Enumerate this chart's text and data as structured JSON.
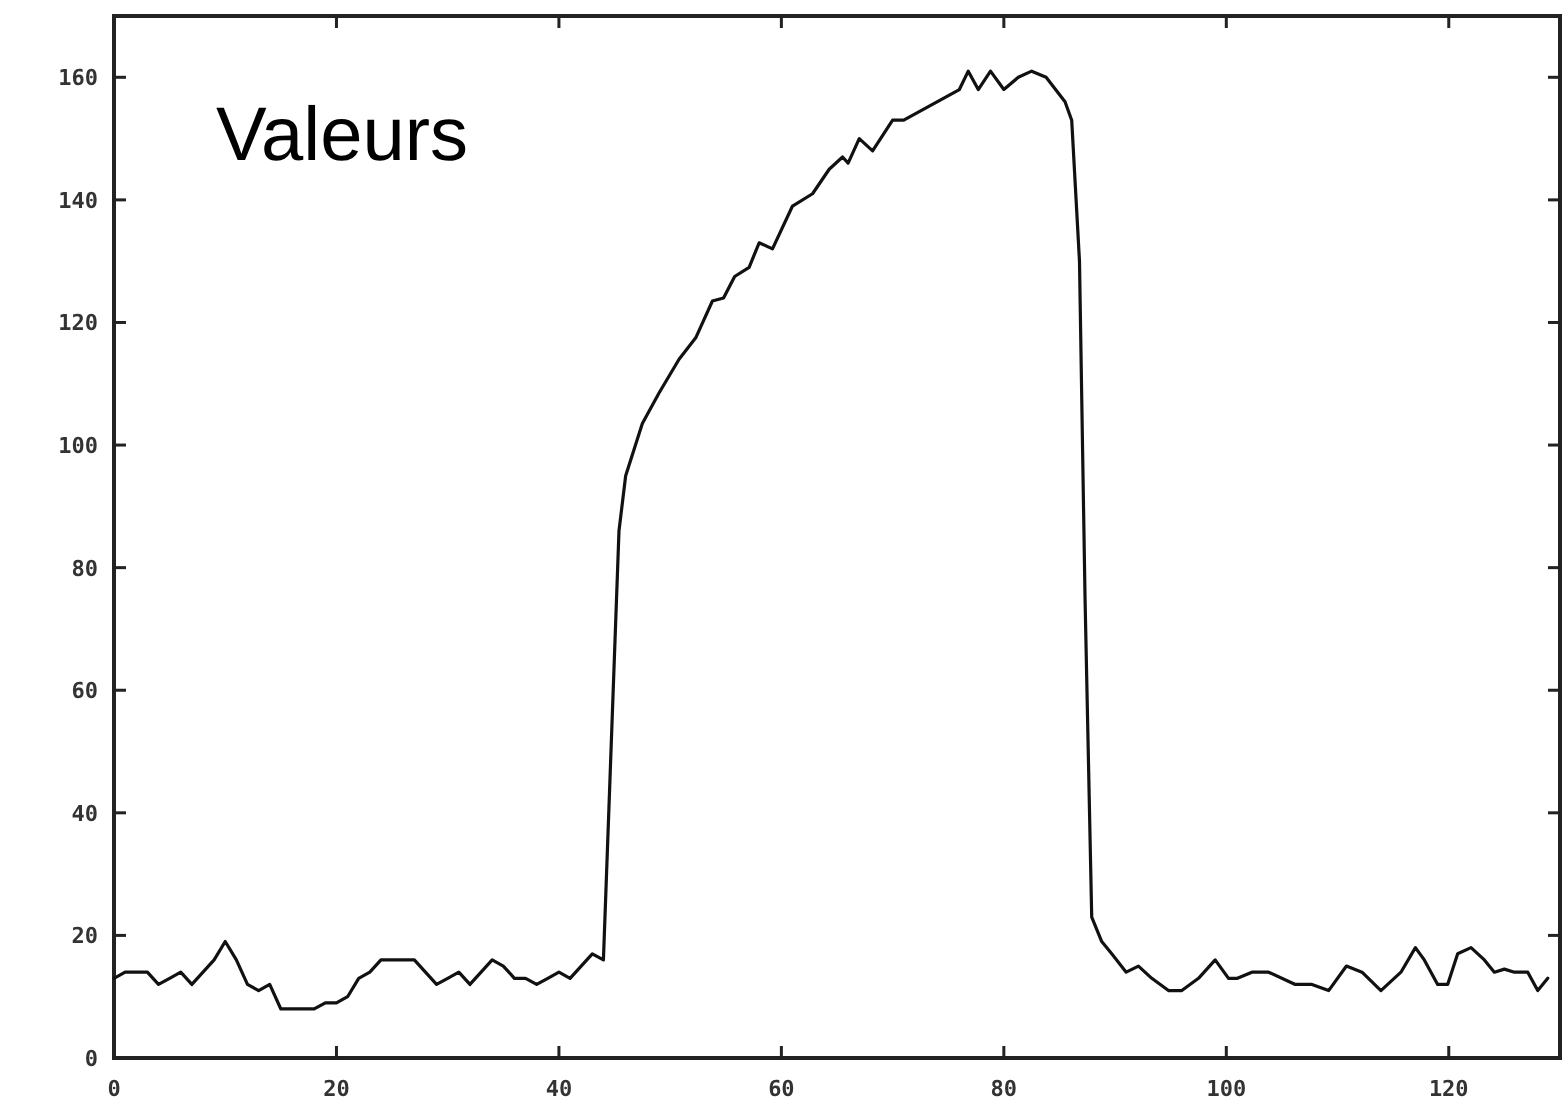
{
  "chart_data": {
    "type": "line",
    "title": "Valeurs",
    "x": [
      0,
      1,
      2,
      3,
      4,
      5,
      6,
      7,
      8,
      9,
      10,
      11,
      12,
      13,
      14,
      15,
      16,
      17,
      18,
      19,
      20,
      21,
      22,
      23,
      24,
      25,
      26,
      27,
      28,
      29,
      30,
      31,
      32,
      33,
      34,
      35,
      36,
      37,
      38,
      39,
      40,
      41,
      42,
      43,
      44,
      45.4,
      46,
      47.5,
      49,
      50.8,
      52.3,
      53.8,
      54.8,
      55.8,
      57.1,
      58,
      59.2,
      61,
      62.8,
      64.3,
      65.5,
      66,
      67,
      68.2,
      70,
      71,
      73.5,
      76,
      76.8,
      77.7,
      78.8,
      80,
      81.3,
      82.5,
      83.8,
      85.5,
      86.1,
      86.8,
      87.3,
      87.9,
      88.8,
      89.7,
      91,
      92.1,
      93.3,
      94.8,
      96,
      97.5,
      99,
      100.2,
      101,
      102.3,
      103.8,
      106.2,
      107.7,
      109.2,
      110.8,
      112.2,
      113.9,
      115.7,
      117,
      117.8,
      119,
      119.9,
      120.8,
      122,
      123.2,
      124.1,
      125,
      125.9,
      127.1,
      128,
      128.9
    ],
    "series": [
      {
        "color": "#111111",
        "values": [
          13,
          14,
          14,
          14,
          12,
          13,
          14,
          12,
          14,
          16,
          19,
          16,
          12,
          11,
          12,
          8,
          8,
          8,
          8,
          9,
          9,
          10,
          13,
          14,
          16,
          16,
          16,
          16,
          14,
          12,
          13,
          14,
          12,
          14,
          16,
          15,
          13,
          13,
          12,
          13,
          14,
          13,
          15,
          17,
          16,
          86,
          95,
          103.5,
          108.5,
          114,
          117.5,
          123.5,
          124,
          127.5,
          129,
          133,
          132,
          139,
          141,
          145,
          147,
          146,
          150,
          148,
          153,
          153,
          155.5,
          158,
          161,
          158,
          161,
          158,
          160,
          161,
          160,
          156,
          153,
          130,
          75,
          23,
          19,
          17,
          14,
          15,
          13,
          11,
          11,
          13,
          16,
          13,
          13,
          14,
          14,
          12,
          12,
          11,
          15,
          14,
          11,
          14,
          18,
          16,
          12,
          12,
          17,
          18,
          16,
          14,
          14.5,
          14,
          14,
          11,
          13
        ]
      }
    ],
    "xlim": [
      0,
      130
    ],
    "ylim": [
      0,
      170
    ],
    "xticks": [
      0,
      20,
      40,
      60,
      80,
      100,
      120
    ],
    "yticks": [
      0,
      20,
      40,
      60,
      80,
      100,
      120,
      140,
      160
    ],
    "marker": "none",
    "line_style": "solid"
  }
}
